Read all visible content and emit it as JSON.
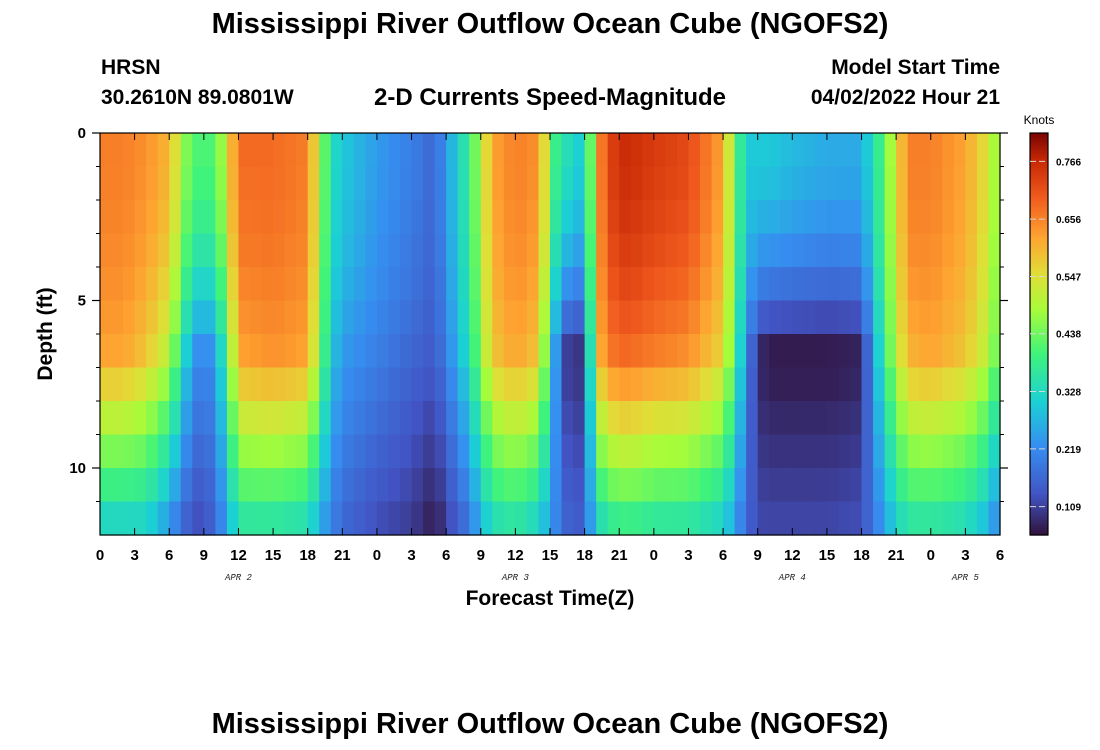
{
  "header": {
    "title": "Mississippi River Outflow Ocean Cube (NGOFS2)",
    "station": "HRSN",
    "coordinates": "30.2610N  89.0801W",
    "subtitle": "2-D Currents Speed-Magnitude",
    "model_start_label": "Model Start Time",
    "model_start_value": "04/02/2022 Hour 21"
  },
  "footer": {
    "title": "Mississippi River Outflow Ocean Cube (NGOFS2)"
  },
  "chart_data": {
    "type": "heatmap",
    "title": "2-D Currents Speed-Magnitude",
    "xlabel": "Forecast Time(Z)",
    "ylabel": "Depth (ft)",
    "x_ticks": [
      "0",
      "3",
      "6",
      "9",
      "12",
      "15",
      "18",
      "21",
      "0",
      "3",
      "6",
      "9",
      "12",
      "15",
      "18",
      "21",
      "0",
      "3",
      "6",
      "9",
      "12",
      "15",
      "18",
      "21",
      "0",
      "3",
      "6"
    ],
    "date_labels": [
      {
        "label": "APR 2",
        "hour": 12
      },
      {
        "label": "APR 3",
        "hour": 36
      },
      {
        "label": "APR 4",
        "hour": 60
      },
      {
        "label": "APR 5",
        "hour": 75
      }
    ],
    "x_range_hours": [
      0,
      78
    ],
    "y_ticks": [
      "0",
      "5",
      "10"
    ],
    "y_range_ft": [
      0,
      12
    ],
    "depths_ft": [
      0.5,
      1.5,
      2.5,
      3.5,
      4.5,
      5.5,
      6.5,
      7.5,
      8.5,
      9.5,
      10.5,
      11.5
    ],
    "colorbar": {
      "label": "Knots",
      "min": 0.055,
      "max": 0.82,
      "ticks": [
        "0.109",
        "0.219",
        "0.328",
        "0.438",
        "0.547",
        "0.656",
        "0.766"
      ]
    },
    "speed_knots_key_times": {
      "hours": [
        0,
        2,
        4,
        6,
        7,
        8,
        9,
        10,
        11,
        12,
        15,
        18,
        19,
        20,
        21,
        24,
        27,
        29,
        30,
        32,
        33,
        34,
        36,
        38,
        40,
        41,
        42,
        43,
        44,
        45,
        46,
        48,
        51,
        54,
        55,
        56,
        57,
        58,
        60,
        63,
        66,
        67,
        68,
        69,
        70,
        72,
        75,
        77,
        78
      ],
      "surface": [
        0.66,
        0.66,
        0.64,
        0.6,
        0.5,
        0.4,
        0.42,
        0.4,
        0.54,
        0.68,
        0.68,
        0.66,
        0.5,
        0.34,
        0.3,
        0.24,
        0.2,
        0.16,
        0.24,
        0.38,
        0.5,
        0.62,
        0.66,
        0.64,
        0.3,
        0.38,
        0.24,
        0.62,
        0.72,
        0.76,
        0.76,
        0.74,
        0.72,
        0.62,
        0.44,
        0.3,
        0.3,
        0.3,
        0.28,
        0.26,
        0.26,
        0.34,
        0.42,
        0.54,
        0.66,
        0.66,
        0.62,
        0.54,
        0.44
      ],
      "mid": [
        0.62,
        0.62,
        0.58,
        0.5,
        0.36,
        0.24,
        0.2,
        0.24,
        0.4,
        0.62,
        0.64,
        0.62,
        0.46,
        0.3,
        0.24,
        0.2,
        0.16,
        0.14,
        0.2,
        0.34,
        0.46,
        0.58,
        0.62,
        0.58,
        0.12,
        0.08,
        0.1,
        0.58,
        0.66,
        0.68,
        0.68,
        0.66,
        0.64,
        0.56,
        0.4,
        0.22,
        0.08,
        0.06,
        0.06,
        0.06,
        0.07,
        0.24,
        0.38,
        0.5,
        0.6,
        0.62,
        0.58,
        0.5,
        0.4
      ],
      "bottom": [
        0.3,
        0.3,
        0.3,
        0.22,
        0.16,
        0.12,
        0.12,
        0.16,
        0.24,
        0.34,
        0.34,
        0.32,
        0.26,
        0.2,
        0.16,
        0.12,
        0.1,
        0.06,
        0.1,
        0.18,
        0.26,
        0.32,
        0.34,
        0.3,
        0.18,
        0.14,
        0.16,
        0.3,
        0.34,
        0.36,
        0.36,
        0.34,
        0.34,
        0.3,
        0.24,
        0.16,
        0.12,
        0.12,
        0.12,
        0.12,
        0.13,
        0.18,
        0.24,
        0.3,
        0.34,
        0.34,
        0.32,
        0.26,
        0.18
      ]
    }
  }
}
